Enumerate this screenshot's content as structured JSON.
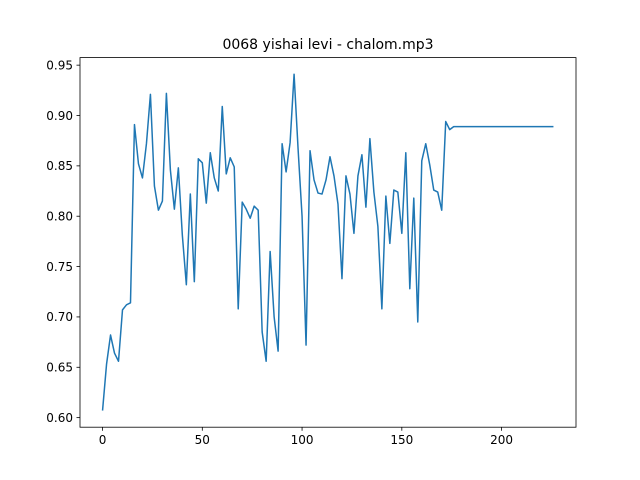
{
  "chart_data": {
    "type": "line",
    "title": "0068 yishai levi - chalom.mp3",
    "xlabel": "",
    "ylabel": "",
    "xlim": [
      -11.3,
      237.3
    ],
    "ylim": [
      0.5905,
      0.9575
    ],
    "xticks": [
      0,
      50,
      100,
      150,
      200
    ],
    "xtick_labels": [
      "0",
      "50",
      "100",
      "150",
      "200"
    ],
    "yticks": [
      0.6,
      0.65,
      0.7,
      0.75,
      0.8,
      0.85,
      0.9,
      0.95
    ],
    "ytick_labels": [
      "0.60",
      "0.65",
      "0.70",
      "0.75",
      "0.80",
      "0.85",
      "0.90",
      "0.95"
    ],
    "grid": false,
    "series": [
      {
        "color": "#1f77b4",
        "x": [
          0,
          2,
          4,
          6,
          8,
          10,
          12,
          14,
          16,
          18,
          20,
          22,
          24,
          26,
          28,
          30,
          32,
          34,
          36,
          38,
          40,
          42,
          44,
          46,
          48,
          50,
          52,
          54,
          56,
          58,
          60,
          62,
          64,
          66,
          68,
          70,
          72,
          74,
          76,
          78,
          80,
          82,
          84,
          86,
          88,
          90,
          92,
          94,
          96,
          98,
          100,
          102,
          104,
          106,
          108,
          110,
          112,
          114,
          116,
          118,
          120,
          122,
          124,
          126,
          128,
          130,
          132,
          134,
          136,
          138,
          140,
          142,
          144,
          146,
          148,
          150,
          152,
          154,
          156,
          158,
          160,
          162,
          164,
          166,
          168,
          170,
          172,
          174,
          176,
          178,
          180,
          182,
          184,
          186,
          188,
          190,
          192,
          194,
          196,
          198,
          200,
          202,
          204,
          206,
          208,
          210,
          212,
          214,
          216,
          218,
          220,
          222,
          224,
          226
        ],
        "values": [
          0.607,
          0.653,
          0.682,
          0.664,
          0.656,
          0.707,
          0.712,
          0.714,
          0.891,
          0.852,
          0.838,
          0.872,
          0.921,
          0.83,
          0.806,
          0.815,
          0.922,
          0.846,
          0.807,
          0.848,
          0.781,
          0.732,
          0.822,
          0.735,
          0.857,
          0.853,
          0.813,
          0.863,
          0.838,
          0.825,
          0.909,
          0.842,
          0.858,
          0.849,
          0.708,
          0.814,
          0.807,
          0.798,
          0.81,
          0.806,
          0.685,
          0.656,
          0.765,
          0.7,
          0.666,
          0.872,
          0.844,
          0.873,
          0.941,
          0.867,
          0.8,
          0.672,
          0.865,
          0.836,
          0.823,
          0.822,
          0.836,
          0.859,
          0.84,
          0.812,
          0.738,
          0.84,
          0.822,
          0.783,
          0.84,
          0.861,
          0.809,
          0.877,
          0.824,
          0.79,
          0.708,
          0.82,
          0.773,
          0.826,
          0.824,
          0.783,
          0.863,
          0.728,
          0.818,
          0.695,
          0.855,
          0.872,
          0.851,
          0.826,
          0.824,
          0.806,
          0.894,
          0.886,
          0.889,
          0.889,
          0.889,
          0.889,
          0.889,
          0.889,
          0.889,
          0.889,
          0.889,
          0.889,
          0.889,
          0.889,
          0.889,
          0.889,
          0.889,
          0.889,
          0.889,
          0.889,
          0.889,
          0.889,
          0.889,
          0.889,
          0.889,
          0.889,
          0.889,
          0.889
        ]
      }
    ]
  }
}
